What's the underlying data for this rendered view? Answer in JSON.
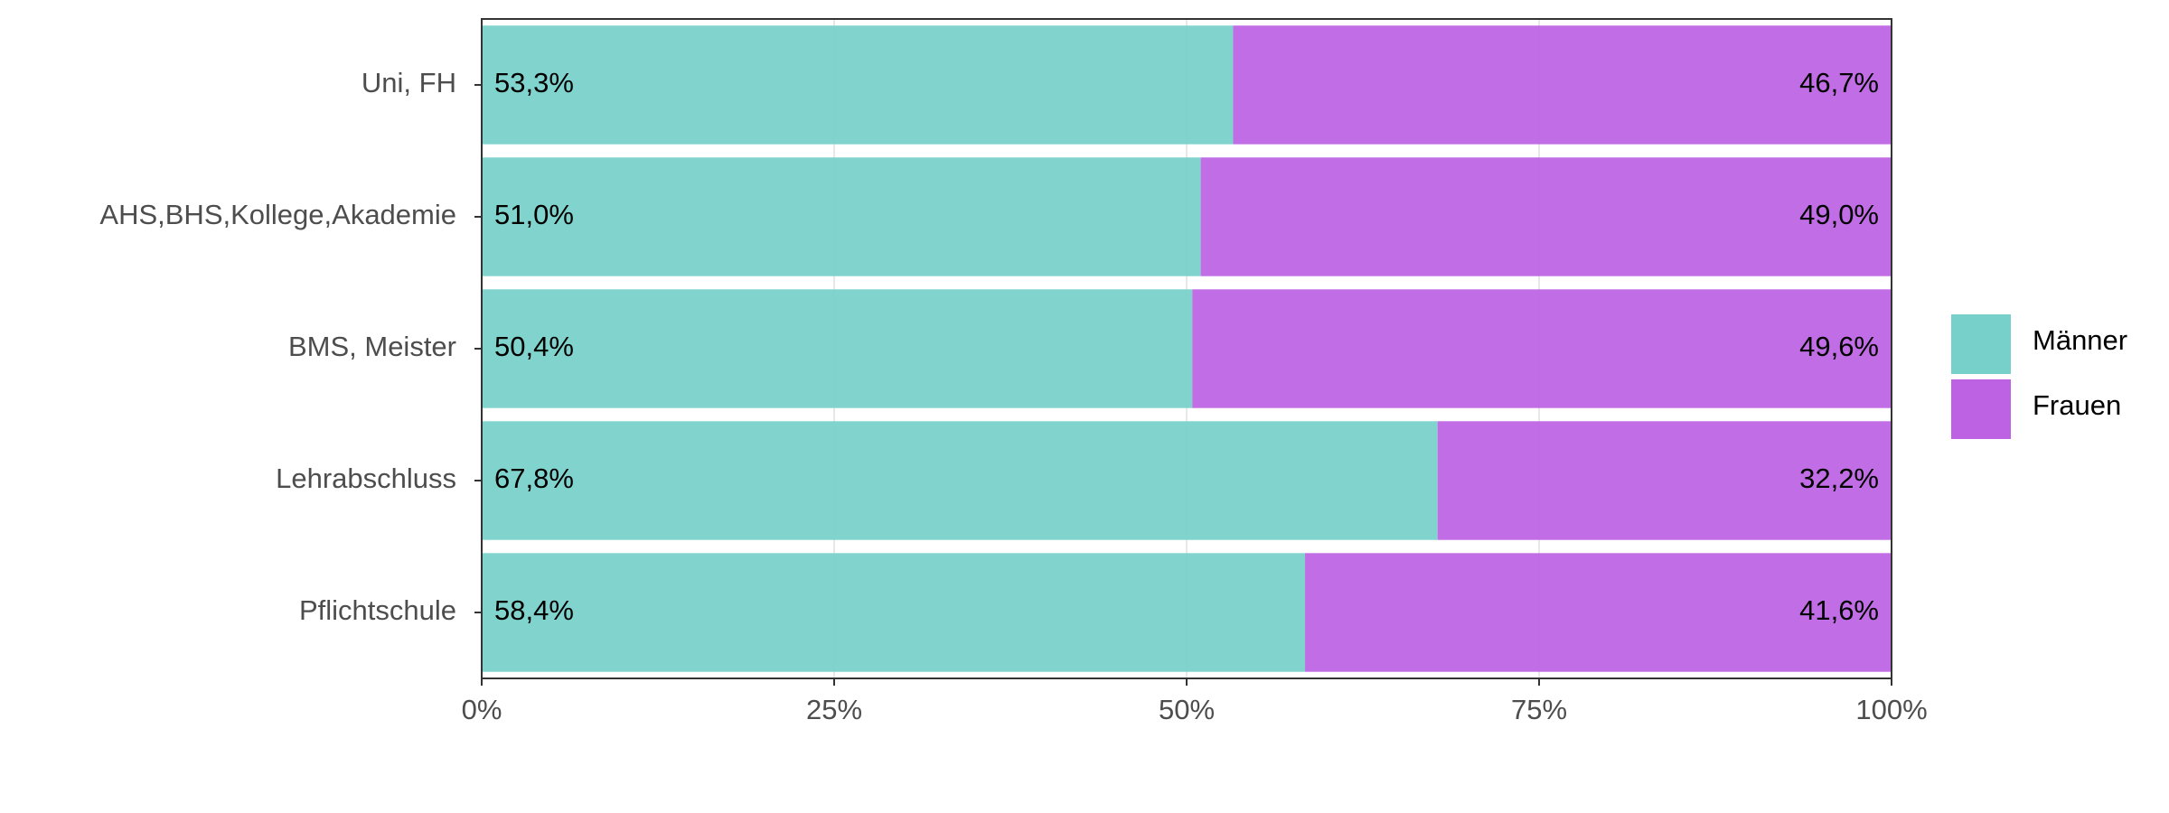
{
  "chart_data": {
    "type": "stacked_barh",
    "categories": [
      "Uni, FH",
      "AHS,BHS,Kollege,Akademie",
      "BMS, Meister",
      "Lehrabschluss",
      "Pflichtschule"
    ],
    "series": [
      {
        "name": "Männer",
        "color": "#77d1ca",
        "values": [
          53.3,
          51.0,
          50.4,
          67.8,
          58.4
        ],
        "value_labels": [
          "53,3%",
          "51,0%",
          "50,4%",
          "67,8%",
          "58,4%"
        ]
      },
      {
        "name": "Frauen",
        "color": "#bc62e3",
        "values": [
          46.7,
          49.0,
          49.6,
          32.2,
          41.6
        ],
        "value_labels": [
          "46,7%",
          "49,0%",
          "49,6%",
          "32,2%",
          "41,6%"
        ]
      }
    ],
    "xlim": [
      0,
      100
    ],
    "xticks": [
      {
        "value": 0,
        "label": "0%"
      },
      {
        "value": 25,
        "label": "25%"
      },
      {
        "value": 50,
        "label": "50%"
      },
      {
        "value": 75,
        "label": "75%"
      },
      {
        "value": 100,
        "label": "100%"
      }
    ],
    "grid": true,
    "legend": "right"
  }
}
